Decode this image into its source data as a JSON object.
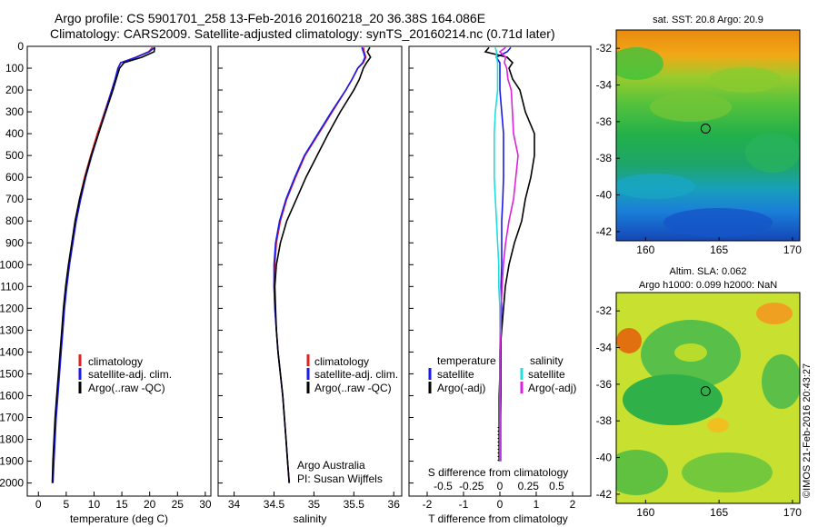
{
  "header": {
    "title_line1": "Argo profile: CS 5901701_258 13-Feb-2016 20160218_20 36.38S 164.086E",
    "title_line2": "Climatology: CARS2009. Satellite-adjusted climatology: synTS_20160214.nc (0.71d later)"
  },
  "credit": {
    "argo_line1": "Argo Australia",
    "argo_line2": "PI: Susan Wijffels",
    "imos_stamp": "©IMOS 21-Feb-2016 20:43:27"
  },
  "colors": {
    "climatology": "#dd2222",
    "satellite": "#1a1aee",
    "argo": "#000000",
    "salinity_satellite": "#22dddd",
    "salinity_argo": "#dd22dd"
  },
  "chart_data": [
    {
      "type": "line",
      "id": "temperature",
      "xlabel": "temperature (deg C)",
      "ylabel": "",
      "xlim": [
        -2,
        31
      ],
      "ylim": [
        2060,
        0
      ],
      "xticks": [
        "0",
        "5",
        "10",
        "15",
        "20",
        "25",
        "30"
      ],
      "yticks": [
        "0",
        "100",
        "200",
        "300",
        "400",
        "500",
        "600",
        "700",
        "800",
        "900",
        "1000",
        "1100",
        "1200",
        "1300",
        "1400",
        "1500",
        "1600",
        "1700",
        "1800",
        "1900",
        "2000"
      ],
      "legend": [
        "climatology",
        "satellite-adj. clim.",
        "Argo(..raw -QC)"
      ],
      "depth": [
        5,
        25,
        50,
        75,
        100,
        150,
        200,
        300,
        400,
        500,
        600,
        700,
        800,
        900,
        1000,
        1100,
        1200,
        1300,
        1400,
        1500,
        1600,
        1700,
        1800,
        1900,
        2000
      ],
      "series": [
        {
          "name": "climatology",
          "color": "#dd2222",
          "values": [
            20.5,
            19.8,
            17.5,
            14.8,
            14.3,
            13.8,
            13.2,
            11.9,
            10.6,
            9.4,
            8.3,
            7.4,
            6.7,
            6.1,
            5.5,
            5.0,
            4.6,
            4.3,
            4.0,
            3.7,
            3.4,
            3.1,
            2.9,
            2.7,
            2.6
          ]
        },
        {
          "name": "satellite-adj. clim.",
          "color": "#1a1aee",
          "values": [
            20.9,
            19.9,
            17.6,
            14.8,
            14.3,
            13.8,
            13.2,
            12.0,
            10.8,
            9.6,
            8.5,
            7.6,
            6.8,
            6.2,
            5.6,
            5.1,
            4.7,
            4.4,
            4.1,
            3.8,
            3.5,
            3.2,
            3.0,
            2.8,
            2.6
          ]
        },
        {
          "name": "Argo(..raw -QC)",
          "color": "#000000",
          "values": [
            20.9,
            20.8,
            18.6,
            15.4,
            14.6,
            14.0,
            13.4,
            12.1,
            10.8,
            9.5,
            8.4,
            7.4,
            6.6,
            6.0,
            5.4,
            4.9,
            4.5,
            4.2,
            3.9,
            3.6,
            3.3,
            3.0,
            2.8,
            2.6,
            2.5
          ]
        }
      ]
    },
    {
      "type": "line",
      "id": "salinity",
      "xlabel": "salinity",
      "ylabel": "",
      "xlim": [
        33.8,
        36.1
      ],
      "ylim": [
        2060,
        0
      ],
      "xticks": [
        "34",
        "34.5",
        "35",
        "35.5",
        "36"
      ],
      "legend": [
        "climatology",
        "satellite-adj. clim.",
        "Argo(..raw -QC)"
      ],
      "depth": [
        5,
        25,
        50,
        75,
        100,
        150,
        200,
        300,
        400,
        500,
        600,
        700,
        800,
        900,
        1000,
        1100,
        1200,
        1300,
        1400,
        1500,
        1600,
        1700,
        1800,
        1900,
        2000
      ],
      "series": [
        {
          "name": "climatology",
          "color": "#dd2222",
          "values": [
            35.62,
            35.63,
            35.65,
            35.62,
            35.55,
            35.48,
            35.4,
            35.23,
            35.06,
            34.89,
            34.77,
            34.66,
            34.58,
            34.53,
            34.51,
            34.5,
            34.51,
            34.53,
            34.55,
            34.58,
            34.61,
            34.63,
            34.65,
            34.67,
            34.69
          ]
        },
        {
          "name": "satellite-adj. clim.",
          "color": "#1a1aee",
          "values": [
            35.6,
            35.62,
            35.64,
            35.61,
            35.55,
            35.48,
            35.4,
            35.22,
            35.05,
            34.88,
            34.76,
            34.65,
            34.57,
            34.52,
            34.5,
            34.5,
            34.51,
            34.53,
            34.55,
            34.58,
            34.61,
            34.63,
            34.65,
            34.67,
            34.69
          ]
        },
        {
          "name": "Argo(..raw -QC)",
          "color": "#000000",
          "values": [
            35.7,
            35.67,
            35.71,
            35.66,
            35.62,
            35.57,
            35.5,
            35.33,
            35.18,
            35.04,
            34.9,
            34.78,
            34.66,
            34.58,
            34.53,
            34.51,
            34.52,
            34.53,
            34.55,
            34.58,
            34.61,
            34.63,
            34.65,
            34.67,
            34.69
          ]
        }
      ]
    },
    {
      "type": "line",
      "id": "difference",
      "xlabel": "T difference from climatology",
      "xlabel_top": "S difference from climatology",
      "xlim_T": [
        -2.5,
        2.5
      ],
      "xlim_S": [
        -0.8,
        0.8
      ],
      "ylim": [
        2060,
        0
      ],
      "xticks_T": [
        "-2",
        "-1",
        "0",
        "1",
        "2"
      ],
      "xticks_S": [
        "-0.5",
        "-0.25",
        "0",
        "0.25",
        "0.5"
      ],
      "legend_titles": [
        "temperature",
        "salinity"
      ],
      "legend": [
        "satellite",
        "Argo(-adj)",
        "satellite",
        "Argo(-adj)"
      ],
      "depth": [
        5,
        25,
        50,
        75,
        100,
        150,
        200,
        300,
        400,
        500,
        600,
        700,
        800,
        900,
        1000,
        1100,
        1200,
        1300,
        1400,
        1500,
        1600,
        1700,
        1800,
        1900
      ],
      "series": [
        {
          "name": "T satellite",
          "color": "#1a1aee",
          "values": [
            0.3,
            0.2,
            -0.1,
            0,
            0,
            0,
            0,
            0.05,
            0.1,
            0.1,
            0.1,
            0.08,
            0.05,
            0.05,
            0.05,
            0.03,
            0.05,
            0.03,
            0.03,
            0.03,
            0.03,
            0.02,
            0.02,
            0.02
          ]
        },
        {
          "name": "T Argo(-adj)",
          "color": "#000000",
          "values": [
            -0.3,
            -0.4,
            0.2,
            0.35,
            0.25,
            0.35,
            0.55,
            0.7,
            0.95,
            0.95,
            0.85,
            0.7,
            0.6,
            0.4,
            0.25,
            0.15,
            0.1,
            0.05,
            0.0,
            0.0,
            -0.02,
            -0.02,
            -0.02,
            -0.02
          ]
        },
        {
          "name": "S satellite",
          "color": "#22dddd",
          "values": [
            -0.04,
            -0.03,
            -0.03,
            -0.02,
            -0.02,
            -0.02,
            -0.02,
            -0.04,
            -0.05,
            -0.05,
            -0.05,
            -0.04,
            -0.03,
            -0.02,
            -0.01,
            -0.01,
            0,
            0,
            0,
            0,
            0,
            0,
            0,
            0
          ]
        },
        {
          "name": "S Argo(-adj)",
          "color": "#dd22dd",
          "values": [
            0.05,
            0.0,
            0.05,
            0.04,
            0.06,
            0.07,
            0.1,
            0.11,
            0.12,
            0.16,
            0.14,
            0.12,
            0.08,
            0.05,
            0.03,
            0.02,
            0.01,
            0.01,
            0,
            0,
            0,
            0,
            0,
            0
          ]
        }
      ]
    },
    {
      "type": "heatmap",
      "id": "sst_map",
      "title": "sat. SST: 20.8  Argo: 20.9",
      "xlim": [
        158,
        170.5
      ],
      "ylim": [
        -42.5,
        -31
      ],
      "xticks": [
        "160",
        "165",
        "170"
      ],
      "yticks": [
        "-32",
        "-34",
        "-36",
        "-38",
        "-40",
        "-42"
      ],
      "argo_position": [
        164.086,
        -36.38
      ]
    },
    {
      "type": "heatmap",
      "id": "sla_map",
      "title_line1": "Altim. SLA: 0.062",
      "title_line2": "Argo h1000: 0.099  h2000: NaN",
      "xlim": [
        158,
        170.5
      ],
      "ylim": [
        -42.5,
        -31
      ],
      "xticks": [
        "160",
        "165",
        "170"
      ],
      "yticks": [
        "-32",
        "-34",
        "-36",
        "-38",
        "-40",
        "-42"
      ],
      "argo_position": [
        164.086,
        -36.38
      ]
    }
  ]
}
